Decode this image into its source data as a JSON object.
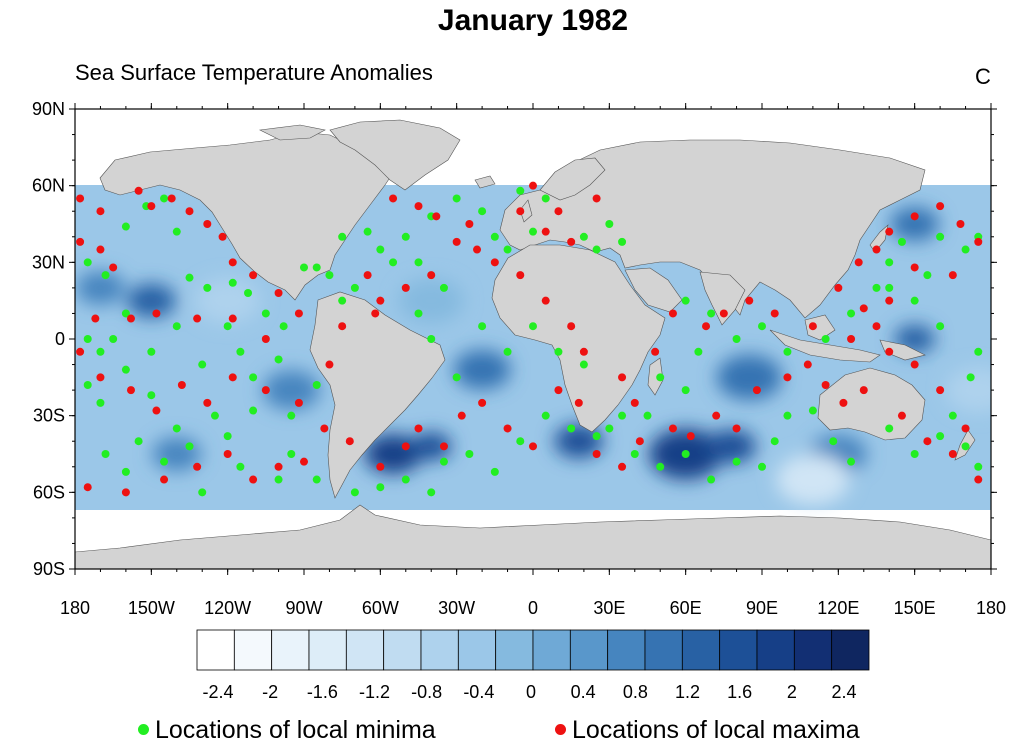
{
  "title": "January 1982",
  "subtitle": "Sea Surface Temperature Anomalies",
  "units": "C",
  "lat_labels": [
    "90N",
    "60N",
    "30N",
    "0",
    "30S",
    "60S",
    "90S"
  ],
  "lon_labels": [
    "180",
    "150W",
    "120W",
    "90W",
    "60W",
    "30W",
    "0",
    "30E",
    "60E",
    "90E",
    "120E",
    "150E",
    "180"
  ],
  "colorbar": {
    "labels": [
      "-2.4",
      "-2",
      "-1.6",
      "-1.2",
      "-0.8",
      "-0.4",
      "0",
      "0.4",
      "0.8",
      "1.2",
      "1.6",
      "2",
      "2.4"
    ],
    "colors": [
      "#ffffff",
      "#f4f9fd",
      "#e9f3fb",
      "#ddedf8",
      "#d0e5f5",
      "#c0dcf1",
      "#aed2ed",
      "#9bc7e8",
      "#85badf",
      "#6fa9d6",
      "#5997cb",
      "#4685bf",
      "#3673b2",
      "#2861a4",
      "#1d5097",
      "#163f87",
      "#122f73",
      "#0f2660"
    ]
  },
  "colors": {
    "land": "#d3d3d3",
    "minima": "#22ee22",
    "maxima": "#ee1111"
  },
  "legend": {
    "minima_label": "Locations of local minima",
    "maxima_label": "Locations of local maxima"
  },
  "minima": [
    [
      -175,
      30
    ],
    [
      -168,
      25
    ],
    [
      -160,
      44
    ],
    [
      -152,
      52
    ],
    [
      -145,
      55
    ],
    [
      -140,
      42
    ],
    [
      -135,
      24
    ],
    [
      -128,
      20
    ],
    [
      -118,
      22
    ],
    [
      -112,
      18
    ],
    [
      -105,
      10
    ],
    [
      -98,
      5
    ],
    [
      -120,
      5
    ],
    [
      -140,
      5
    ],
    [
      -160,
      10
    ],
    [
      -175,
      0
    ],
    [
      -165,
      0
    ],
    [
      -150,
      -5
    ],
    [
      -130,
      -10
    ],
    [
      -115,
      -5
    ],
    [
      -100,
      -8
    ],
    [
      -85,
      -18
    ],
    [
      -95,
      -30
    ],
    [
      -110,
      -28
    ],
    [
      -125,
      -30
    ],
    [
      -140,
      -35
    ],
    [
      -155,
      -40
    ],
    [
      -170,
      -25
    ],
    [
      -175,
      -18
    ],
    [
      -168,
      -45
    ],
    [
      -160,
      -52
    ],
    [
      -145,
      -48
    ],
    [
      -130,
      -60
    ],
    [
      -115,
      -50
    ],
    [
      -100,
      -55
    ],
    [
      -85,
      -55
    ],
    [
      -70,
      -60
    ],
    [
      -60,
      -58
    ],
    [
      -50,
      -55
    ],
    [
      -40,
      -60
    ],
    [
      -35,
      -48
    ],
    [
      -25,
      -45
    ],
    [
      -15,
      -52
    ],
    [
      -5,
      -40
    ],
    [
      5,
      -30
    ],
    [
      15,
      -35
    ],
    [
      25,
      -38
    ],
    [
      35,
      -30
    ],
    [
      40,
      -45
    ],
    [
      50,
      -50
    ],
    [
      60,
      -45
    ],
    [
      70,
      -55
    ],
    [
      80,
      -48
    ],
    [
      90,
      -50
    ],
    [
      95,
      -40
    ],
    [
      100,
      -30
    ],
    [
      110,
      -28
    ],
    [
      118,
      -40
    ],
    [
      125,
      -48
    ],
    [
      140,
      -35
    ],
    [
      150,
      -45
    ],
    [
      160,
      -38
    ],
    [
      170,
      -42
    ],
    [
      175,
      -50
    ],
    [
      165,
      -30
    ],
    [
      172,
      -15
    ],
    [
      175,
      -5
    ],
    [
      160,
      5
    ],
    [
      150,
      15
    ],
    [
      140,
      20
    ],
    [
      155,
      25
    ],
    [
      170,
      35
    ],
    [
      175,
      40
    ],
    [
      160,
      40
    ],
    [
      145,
      38
    ],
    [
      140,
      30
    ],
    [
      135,
      20
    ],
    [
      125,
      10
    ],
    [
      115,
      0
    ],
    [
      100,
      -5
    ],
    [
      90,
      5
    ],
    [
      80,
      0
    ],
    [
      70,
      10
    ],
    [
      60,
      15
    ],
    [
      65,
      -5
    ],
    [
      60,
      -20
    ],
    [
      50,
      -15
    ],
    [
      45,
      -30
    ],
    [
      30,
      -35
    ],
    [
      20,
      -10
    ],
    [
      10,
      -5
    ],
    [
      0,
      5
    ],
    [
      -10,
      -5
    ],
    [
      -20,
      5
    ],
    [
      -30,
      -15
    ],
    [
      -40,
      0
    ],
    [
      -45,
      10
    ],
    [
      -35,
      20
    ],
    [
      -45,
      30
    ],
    [
      -50,
      40
    ],
    [
      -40,
      48
    ],
    [
      -30,
      55
    ],
    [
      -20,
      50
    ],
    [
      -15,
      40
    ],
    [
      -10,
      35
    ],
    [
      0,
      42
    ],
    [
      -5,
      58
    ],
    [
      5,
      55
    ],
    [
      20,
      40
    ],
    [
      25,
      35
    ],
    [
      30,
      45
    ],
    [
      35,
      38
    ],
    [
      -70,
      20
    ],
    [
      -75,
      15
    ],
    [
      -80,
      25
    ],
    [
      -85,
      28
    ],
    [
      -90,
      28
    ],
    [
      -75,
      40
    ],
    [
      -65,
      42
    ],
    [
      -60,
      35
    ],
    [
      -55,
      30
    ],
    [
      -170,
      -5
    ],
    [
      -160,
      -12
    ],
    [
      -150,
      -22
    ],
    [
      -135,
      -42
    ],
    [
      -120,
      -38
    ],
    [
      -110,
      -15
    ],
    [
      -95,
      -45
    ]
  ],
  "maxima": [
    [
      -178,
      38
    ],
    [
      -170,
      35
    ],
    [
      -165,
      28
    ],
    [
      -155,
      58
    ],
    [
      -150,
      52
    ],
    [
      -142,
      55
    ],
    [
      -135,
      50
    ],
    [
      -128,
      45
    ],
    [
      -122,
      40
    ],
    [
      -118,
      30
    ],
    [
      -110,
      25
    ],
    [
      -100,
      18
    ],
    [
      -92,
      10
    ],
    [
      -105,
      0
    ],
    [
      -118,
      8
    ],
    [
      -132,
      8
    ],
    [
      -148,
      10
    ],
    [
      -158,
      8
    ],
    [
      -172,
      8
    ],
    [
      -178,
      -5
    ],
    [
      -170,
      -15
    ],
    [
      -158,
      -20
    ],
    [
      -148,
      -28
    ],
    [
      -138,
      -18
    ],
    [
      -128,
      -25
    ],
    [
      -118,
      -15
    ],
    [
      -105,
      -20
    ],
    [
      -92,
      -25
    ],
    [
      -80,
      -10
    ],
    [
      -82,
      -35
    ],
    [
      -90,
      -48
    ],
    [
      -100,
      -50
    ],
    [
      -110,
      -55
    ],
    [
      -120,
      -45
    ],
    [
      -132,
      -50
    ],
    [
      -145,
      -55
    ],
    [
      -160,
      -60
    ],
    [
      -175,
      -58
    ],
    [
      -72,
      -40
    ],
    [
      -60,
      -50
    ],
    [
      -50,
      -42
    ],
    [
      -45,
      -35
    ],
    [
      -35,
      -42
    ],
    [
      -28,
      -30
    ],
    [
      -20,
      -25
    ],
    [
      -10,
      -35
    ],
    [
      0,
      -42
    ],
    [
      10,
      -20
    ],
    [
      18,
      -25
    ],
    [
      25,
      -45
    ],
    [
      35,
      -50
    ],
    [
      42,
      -40
    ],
    [
      55,
      -35
    ],
    [
      62,
      -38
    ],
    [
      72,
      -30
    ],
    [
      80,
      -35
    ],
    [
      88,
      -20
    ],
    [
      100,
      -15
    ],
    [
      108,
      -10
    ],
    [
      115,
      -18
    ],
    [
      122,
      -25
    ],
    [
      130,
      -20
    ],
    [
      145,
      -30
    ],
    [
      155,
      -40
    ],
    [
      165,
      -45
    ],
    [
      175,
      -55
    ],
    [
      170,
      -35
    ],
    [
      160,
      -20
    ],
    [
      150,
      -10
    ],
    [
      140,
      -5
    ],
    [
      135,
      5
    ],
    [
      125,
      0
    ],
    [
      120,
      20
    ],
    [
      128,
      30
    ],
    [
      135,
      35
    ],
    [
      140,
      42
    ],
    [
      150,
      48
    ],
    [
      160,
      52
    ],
    [
      168,
      45
    ],
    [
      175,
      38
    ],
    [
      165,
      25
    ],
    [
      150,
      28
    ],
    [
      140,
      15
    ],
    [
      130,
      12
    ],
    [
      110,
      5
    ],
    [
      95,
      10
    ],
    [
      85,
      15
    ],
    [
      75,
      10
    ],
    [
      68,
      5
    ],
    [
      55,
      10
    ],
    [
      48,
      -5
    ],
    [
      40,
      -25
    ],
    [
      35,
      -15
    ],
    [
      20,
      -5
    ],
    [
      15,
      5
    ],
    [
      5,
      15
    ],
    [
      -5,
      25
    ],
    [
      -15,
      30
    ],
    [
      -22,
      35
    ],
    [
      -25,
      45
    ],
    [
      -38,
      48
    ],
    [
      -45,
      52
    ],
    [
      -55,
      55
    ],
    [
      -30,
      38
    ],
    [
      -40,
      25
    ],
    [
      -50,
      20
    ],
    [
      -60,
      15
    ],
    [
      -65,
      25
    ],
    [
      -62,
      10
    ],
    [
      -75,
      5
    ],
    [
      -5,
      50
    ],
    [
      5,
      42
    ],
    [
      10,
      50
    ],
    [
      15,
      38
    ],
    [
      25,
      55
    ],
    [
      0,
      60
    ],
    [
      -178,
      55
    ],
    [
      -170,
      50
    ]
  ],
  "anomaly_blobs": [
    {
      "lon": 18,
      "lat": -40,
      "r": 6,
      "color": "#1d5097"
    },
    {
      "lon": 60,
      "lat": -45,
      "r": 9,
      "color": "#163f87"
    },
    {
      "lon": 78,
      "lat": -42,
      "r": 6,
      "color": "#1d5097"
    },
    {
      "lon": -55,
      "lat": -45,
      "r": 7,
      "color": "#163f87"
    },
    {
      "lon": -40,
      "lat": -42,
      "r": 5,
      "color": "#1d5097"
    },
    {
      "lon": -150,
      "lat": 15,
      "r": 6,
      "color": "#2861a4"
    },
    {
      "lon": 150,
      "lat": 0,
      "r": 5,
      "color": "#2861a4"
    },
    {
      "lon": -20,
      "lat": -12,
      "r": 7,
      "color": "#3673b2"
    },
    {
      "lon": 85,
      "lat": -15,
      "r": 8,
      "color": "#3673b2"
    },
    {
      "lon": -95,
      "lat": -20,
      "r": 7,
      "color": "#4685bf"
    },
    {
      "lon": 150,
      "lat": 45,
      "r": 6,
      "color": "#3673b2"
    },
    {
      "lon": -140,
      "lat": -45,
      "r": 6,
      "color": "#4685bf"
    },
    {
      "lon": 120,
      "lat": -45,
      "r": 7,
      "color": "#4685bf"
    },
    {
      "lon": -170,
      "lat": 20,
      "r": 6,
      "color": "#4685bf"
    },
    {
      "lon": -40,
      "lat": 15,
      "r": 8,
      "color": "#85badf"
    },
    {
      "lon": 110,
      "lat": -55,
      "r": 9,
      "color": "#d0e5f5"
    },
    {
      "lon": -120,
      "lat": 15,
      "r": 8,
      "color": "#aed2ed"
    },
    {
      "lon": 175,
      "lat": -20,
      "r": 8,
      "color": "#aed2ed"
    }
  ]
}
